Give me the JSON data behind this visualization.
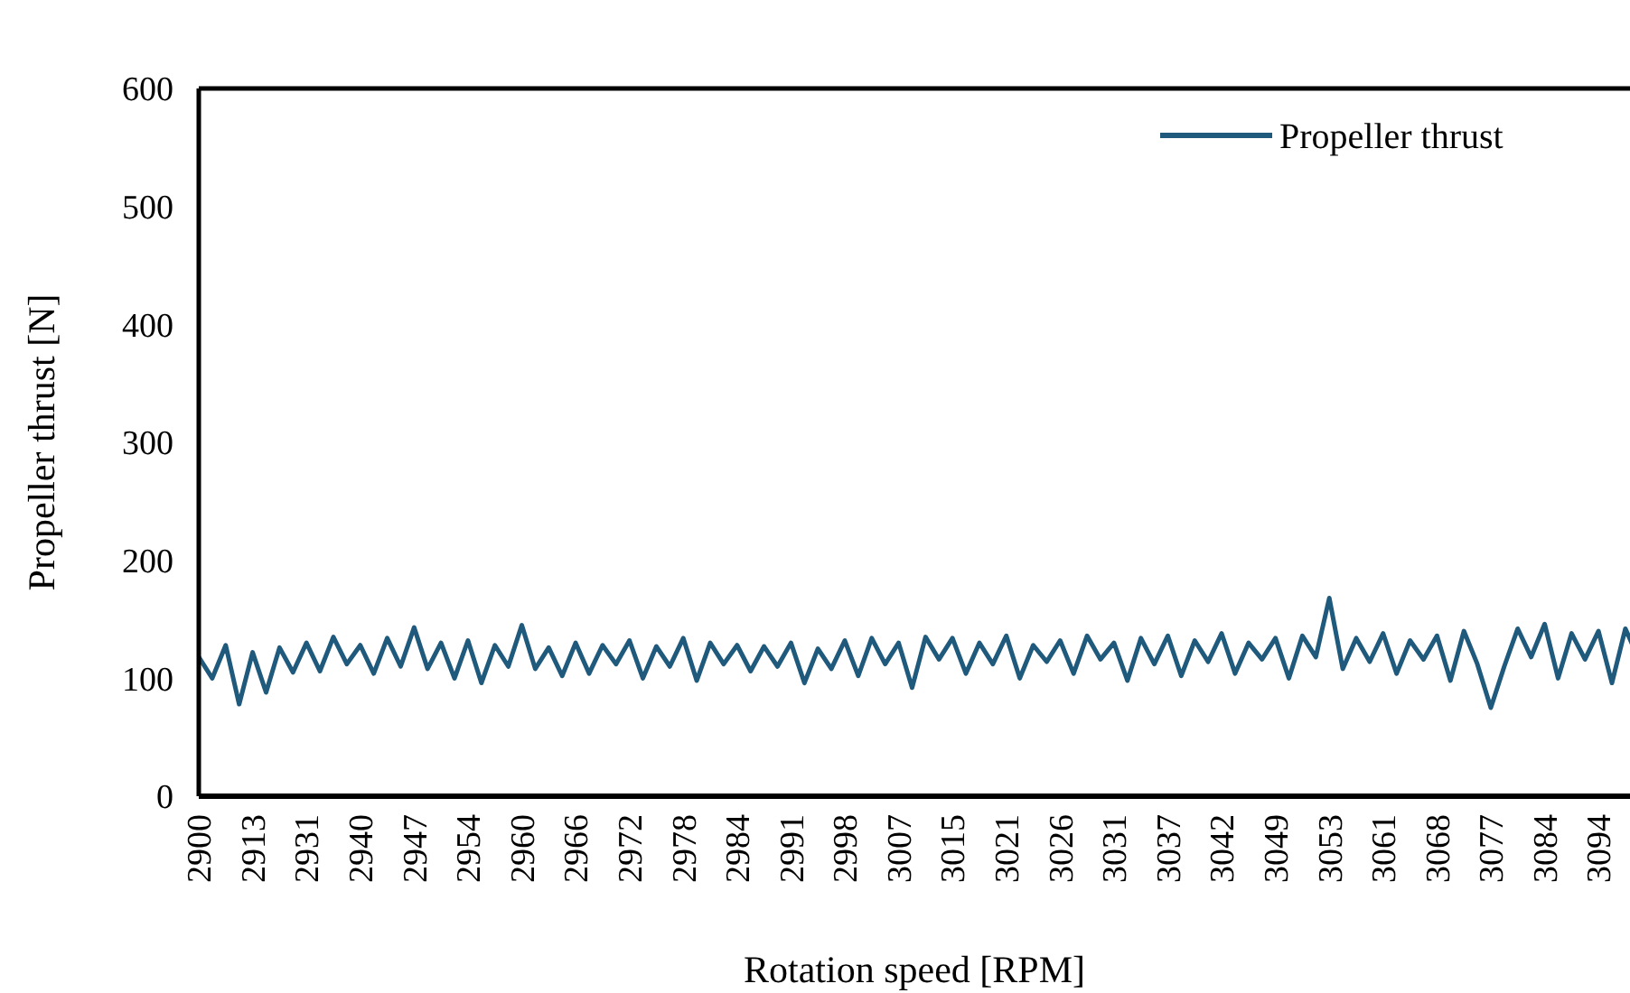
{
  "chart_data": {
    "type": "line",
    "xlabel": "Rotation speed [RPM]",
    "ylabel": "Propeller thrust [N]",
    "categories": [
      "2900",
      null,
      null,
      null,
      "2913",
      null,
      null,
      null,
      "2931",
      null,
      null,
      null,
      "2940",
      null,
      null,
      null,
      "2947",
      null,
      null,
      null,
      "2954",
      null,
      null,
      null,
      "2960",
      null,
      null,
      null,
      "2966",
      null,
      null,
      null,
      "2972",
      null,
      null,
      null,
      "2978",
      null,
      null,
      null,
      "2984",
      null,
      null,
      null,
      "2991",
      null,
      null,
      null,
      "2998",
      null,
      null,
      null,
      "3007",
      null,
      null,
      null,
      "3015",
      null,
      null,
      null,
      "3021",
      null,
      null,
      null,
      "3026",
      null,
      null,
      null,
      "3031",
      null,
      null,
      null,
      "3037",
      null,
      null,
      null,
      "3042",
      null,
      null,
      null,
      "3049",
      null,
      null,
      null,
      "3053",
      null,
      null,
      null,
      "3061",
      null,
      null,
      null,
      "3068",
      null,
      null,
      null,
      "3077",
      null,
      null,
      null,
      "3084",
      null,
      null,
      null,
      "3094",
      null,
      null,
      null
    ],
    "series": [
      {
        "name": "Propeller thrust",
        "color": "#1f5a7d",
        "values": [
          118,
          100,
          128,
          78,
          122,
          88,
          126,
          105,
          130,
          106,
          135,
          112,
          128,
          104,
          134,
          110,
          143,
          108,
          130,
          100,
          132,
          96,
          128,
          110,
          145,
          108,
          126,
          102,
          130,
          104,
          128,
          112,
          132,
          100,
          127,
          110,
          134,
          98,
          130,
          112,
          128,
          106,
          127,
          110,
          130,
          96,
          125,
          108,
          132,
          102,
          134,
          112,
          130,
          92,
          135,
          116,
          134,
          104,
          130,
          112,
          136,
          100,
          128,
          114,
          132,
          104,
          136,
          116,
          130,
          98,
          134,
          112,
          136,
          102,
          132,
          114,
          138,
          104,
          130,
          116,
          134,
          100,
          136,
          118,
          168,
          108,
          134,
          114,
          138,
          104,
          132,
          116,
          136,
          98,
          140,
          112,
          75,
          110,
          142,
          118,
          146,
          100,
          138,
          116,
          140,
          96,
          142,
          116
        ]
      }
    ],
    "ylim": [
      0,
      600
    ],
    "yticks": [
      0,
      100,
      200,
      300,
      400,
      500,
      600
    ],
    "grid": false,
    "legend": "top right"
  }
}
